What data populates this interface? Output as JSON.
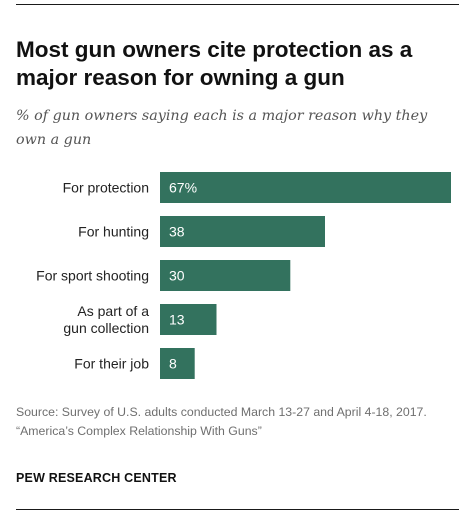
{
  "header": {
    "title": "Most gun owners cite protection as a major reason for owning a gun",
    "subtitle": "% of gun owners saying each is a major reason why they own a gun"
  },
  "footer": {
    "source_line1": "Source: Survey of U.S. adults conducted March 13-27 and April 4-18, 2017.",
    "source_line2": "“America’s Complex Relationship With Guns”",
    "brand": "PEW RESEARCH CENTER"
  },
  "colors": {
    "bar": "#33725e",
    "value_text": "#ffffff",
    "rule": "#1a1a1a"
  },
  "chart_data": {
    "type": "bar",
    "orientation": "horizontal",
    "categories": [
      [
        "For protection"
      ],
      [
        "For hunting"
      ],
      [
        "For sport shooting"
      ],
      [
        "As part of a",
        "gun collection"
      ],
      [
        "For their job"
      ]
    ],
    "values": [
      67,
      38,
      30,
      13,
      8
    ],
    "value_labels": [
      "67%",
      "38",
      "30",
      "13",
      "8"
    ],
    "xlim": [
      0,
      67
    ],
    "grid": false,
    "legend": "none"
  }
}
